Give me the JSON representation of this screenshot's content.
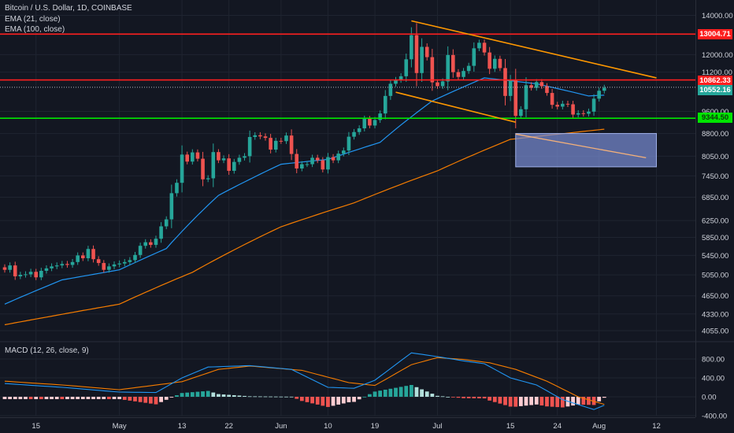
{
  "header": {
    "symbol_line": "Bitcoin / U.S. Dollar, 1D, COINBASE",
    "ema21_label": "EMA (21, close)",
    "ema100_label": "EMA (100, close)",
    "macd_label": "MACD (12, 26, close, 9)"
  },
  "colors": {
    "background": "#131722",
    "grid": "#1f2430",
    "candle_up": "#26a69a",
    "candle_down": "#ef5350",
    "ema21": "#2196f3",
    "ema100": "#f57c00",
    "resistance": "#ff1f1f",
    "support": "#00e500",
    "trendline": "#ff9800",
    "zone": "#7b8fd6",
    "macd_line": "#2196f3",
    "signal_line": "#f57c00",
    "hist_pos_strong": "#26a69a",
    "hist_pos_weak": "#b2dfdb",
    "hist_neg_strong": "#ef5350",
    "hist_neg_weak": "#ffcdd2"
  },
  "chart_data": {
    "type": "candlestick",
    "price_axis": {
      "scale": "log",
      "ylim": [
        3700,
        14500
      ],
      "ticks": [
        14000.0,
        12000.0,
        11200.0,
        9600.0,
        8800.0,
        8050.0,
        7450.0,
        6850.0,
        6250.0,
        5850.0,
        5450.0,
        5050.0,
        4650.0,
        4330.0,
        4055.0
      ]
    },
    "time_axis": {
      "range": [
        "2019-04-09",
        "2019-08-15"
      ],
      "tick_labels": [
        {
          "date": "2019-04-15",
          "label": "15"
        },
        {
          "date": "2019-05-01",
          "label": "May"
        },
        {
          "date": "2019-05-13",
          "label": "13"
        },
        {
          "date": "2019-05-22",
          "label": "22"
        },
        {
          "date": "2019-06-01",
          "label": "Jun"
        },
        {
          "date": "2019-06-10",
          "label": "10"
        },
        {
          "date": "2019-06-19",
          "label": "19"
        },
        {
          "date": "2019-07-01",
          "label": "Jul"
        },
        {
          "date": "2019-07-15",
          "label": "15"
        },
        {
          "date": "2019-07-24",
          "label": "24"
        },
        {
          "date": "2019-08-01",
          "label": "Aug"
        },
        {
          "date": "2019-08-12",
          "label": "12"
        }
      ]
    },
    "grid": true,
    "closes": [
      [
        "2019-04-09",
        5150
      ],
      [
        "2019-04-10",
        5240
      ],
      [
        "2019-04-11",
        5020
      ],
      [
        "2019-04-12",
        5050
      ],
      [
        "2019-04-13",
        5060
      ],
      [
        "2019-04-14",
        5110
      ],
      [
        "2019-04-15",
        5000
      ],
      [
        "2019-04-16",
        5130
      ],
      [
        "2019-04-17",
        5180
      ],
      [
        "2019-04-18",
        5220
      ],
      [
        "2019-04-19",
        5240
      ],
      [
        "2019-04-20",
        5270
      ],
      [
        "2019-04-21",
        5250
      ],
      [
        "2019-04-22",
        5310
      ],
      [
        "2019-04-23",
        5450
      ],
      [
        "2019-04-24",
        5390
      ],
      [
        "2019-04-25",
        5590
      ],
      [
        "2019-04-26",
        5370
      ],
      [
        "2019-04-27",
        5290
      ],
      [
        "2019-04-28",
        5150
      ],
      [
        "2019-04-29",
        5220
      ],
      [
        "2019-04-30",
        5260
      ],
      [
        "2019-05-01",
        5280
      ],
      [
        "2019-05-02",
        5310
      ],
      [
        "2019-05-03",
        5350
      ],
      [
        "2019-05-04",
        5460
      ],
      [
        "2019-05-05",
        5660
      ],
      [
        "2019-05-06",
        5740
      ],
      [
        "2019-05-07",
        5680
      ],
      [
        "2019-05-08",
        5820
      ],
      [
        "2019-05-09",
        6110
      ],
      [
        "2019-05-10",
        6280
      ],
      [
        "2019-05-11",
        6960
      ],
      [
        "2019-05-12",
        7250
      ],
      [
        "2019-05-13",
        8100
      ],
      [
        "2019-05-14",
        7880
      ],
      [
        "2019-05-15",
        8170
      ],
      [
        "2019-05-16",
        7970
      ],
      [
        "2019-05-17",
        7350
      ],
      [
        "2019-05-18",
        7380
      ],
      [
        "2019-05-19",
        8180
      ],
      [
        "2019-05-20",
        7920
      ],
      [
        "2019-05-21",
        7980
      ],
      [
        "2019-05-22",
        7600
      ],
      [
        "2019-05-23",
        7870
      ],
      [
        "2019-05-24",
        8000
      ],
      [
        "2019-05-25",
        8050
      ],
      [
        "2019-05-26",
        8680
      ],
      [
        "2019-05-27",
        8740
      ],
      [
        "2019-05-28",
        8700
      ],
      [
        "2019-05-29",
        8650
      ],
      [
        "2019-05-30",
        8260
      ],
      [
        "2019-05-31",
        8550
      ],
      [
        "2019-06-01",
        8540
      ],
      [
        "2019-06-02",
        8730
      ],
      [
        "2019-06-03",
        8120
      ],
      [
        "2019-06-04",
        7670
      ],
      [
        "2019-06-05",
        7800
      ],
      [
        "2019-06-06",
        7800
      ],
      [
        "2019-06-07",
        8000
      ],
      [
        "2019-06-08",
        7920
      ],
      [
        "2019-06-09",
        7640
      ],
      [
        "2019-06-10",
        8020
      ],
      [
        "2019-06-11",
        7920
      ],
      [
        "2019-06-12",
        8130
      ],
      [
        "2019-06-13",
        8230
      ],
      [
        "2019-06-14",
        8690
      ],
      [
        "2019-06-15",
        8850
      ],
      [
        "2019-06-16",
        8980
      ],
      [
        "2019-06-17",
        9320
      ],
      [
        "2019-06-18",
        9080
      ],
      [
        "2019-06-19",
        9280
      ],
      [
        "2019-06-20",
        9520
      ],
      [
        "2019-06-21",
        10200
      ],
      [
        "2019-06-22",
        10700
      ],
      [
        "2019-06-23",
        10860
      ],
      [
        "2019-06-24",
        11020
      ],
      [
        "2019-06-25",
        11780
      ],
      [
        "2019-06-26",
        12950
      ],
      [
        "2019-06-27",
        11160
      ],
      [
        "2019-06-28",
        12370
      ],
      [
        "2019-06-29",
        11880
      ],
      [
        "2019-06-30",
        10760
      ],
      [
        "2019-07-01",
        10600
      ],
      [
        "2019-07-02",
        10800
      ],
      [
        "2019-07-03",
        11980
      ],
      [
        "2019-07-04",
        11200
      ],
      [
        "2019-07-05",
        10990
      ],
      [
        "2019-07-06",
        11250
      ],
      [
        "2019-07-07",
        11480
      ],
      [
        "2019-07-08",
        12300
      ],
      [
        "2019-07-09",
        12570
      ],
      [
        "2019-07-10",
        12100
      ],
      [
        "2019-07-11",
        11350
      ],
      [
        "2019-07-12",
        11800
      ],
      [
        "2019-07-13",
        11380
      ],
      [
        "2019-07-14",
        10200
      ],
      [
        "2019-07-15",
        10850
      ],
      [
        "2019-07-16",
        9430
      ],
      [
        "2019-07-17",
        9680
      ],
      [
        "2019-07-18",
        10640
      ],
      [
        "2019-07-19",
        10530
      ],
      [
        "2019-07-20",
        10770
      ],
      [
        "2019-07-21",
        10600
      ],
      [
        "2019-07-22",
        10320
      ],
      [
        "2019-07-23",
        9850
      ],
      [
        "2019-07-24",
        9780
      ],
      [
        "2019-07-25",
        9890
      ],
      [
        "2019-07-26",
        9870
      ],
      [
        "2019-07-27",
        9480
      ],
      [
        "2019-07-28",
        9530
      ],
      [
        "2019-07-29",
        9510
      ],
      [
        "2019-07-30",
        9590
      ],
      [
        "2019-07-31",
        10090
      ],
      [
        "2019-08-01",
        10410
      ],
      [
        "2019-08-02",
        10530
      ]
    ],
    "ema21": [
      [
        "2019-04-09",
        4500
      ],
      [
        "2019-04-20",
        4950
      ],
      [
        "2019-05-01",
        5150
      ],
      [
        "2019-05-10",
        5600
      ],
      [
        "2019-05-20",
        6900
      ],
      [
        "2019-06-01",
        7800
      ],
      [
        "2019-06-10",
        7950
      ],
      [
        "2019-06-20",
        8500
      ],
      [
        "2019-06-30",
        10000
      ],
      [
        "2019-07-10",
        10950
      ],
      [
        "2019-07-20",
        10700
      ],
      [
        "2019-07-30",
        10200
      ],
      [
        "2019-08-02",
        10230
      ]
    ],
    "ema100": [
      [
        "2019-04-09",
        4150
      ],
      [
        "2019-05-01",
        4500
      ],
      [
        "2019-05-15",
        5100
      ],
      [
        "2019-06-01",
        6100
      ],
      [
        "2019-06-15",
        6700
      ],
      [
        "2019-07-01",
        7600
      ],
      [
        "2019-07-15",
        8600
      ],
      [
        "2019-08-02",
        8950
      ]
    ],
    "annotations": {
      "resistance_levels": [
        13004.71,
        10862.33
      ],
      "support_level": 9344.5,
      "last_price": 10552.16,
      "price_labels": [
        "13004.71",
        "10862.33",
        "10552.16",
        "9344.50"
      ],
      "upper_trendline": [
        [
          "2019-06-26",
          13700
        ],
        [
          "2019-08-12",
          10950
        ]
      ],
      "lower_trendline": [
        [
          "2019-06-23",
          10350
        ],
        [
          "2019-07-16",
          9200
        ]
      ],
      "zone": {
        "from": "2019-07-16",
        "to": "2019-08-12",
        "price_top": 8800,
        "price_bottom": 7720
      },
      "projection_line": [
        [
          "2019-07-16",
          8780
        ],
        [
          "2019-08-10",
          8000
        ]
      ]
    },
    "macd": {
      "label": "MACD (12, 26, close, 9)",
      "ylim": [
        -480,
        1140
      ],
      "ticks": [
        800.0,
        400.0,
        0.0,
        -400.0
      ],
      "macd_line": [
        [
          "2019-04-09",
          280
        ],
        [
          "2019-04-20",
          200
        ],
        [
          "2019-05-01",
          100
        ],
        [
          "2019-05-08",
          90
        ],
        [
          "2019-05-13",
          400
        ],
        [
          "2019-05-18",
          630
        ],
        [
          "2019-05-26",
          660
        ],
        [
          "2019-06-03",
          580
        ],
        [
          "2019-06-10",
          200
        ],
        [
          "2019-06-15",
          180
        ],
        [
          "2019-06-19",
          350
        ],
        [
          "2019-06-26",
          930
        ],
        [
          "2019-07-01",
          850
        ],
        [
          "2019-07-06",
          760
        ],
        [
          "2019-07-10",
          700
        ],
        [
          "2019-07-15",
          400
        ],
        [
          "2019-07-20",
          250
        ],
        [
          "2019-07-25",
          -60
        ],
        [
          "2019-07-31",
          -270
        ],
        [
          "2019-08-02",
          -180
        ]
      ],
      "signal_line": [
        [
          "2019-04-09",
          330
        ],
        [
          "2019-04-20",
          250
        ],
        [
          "2019-05-01",
          150
        ],
        [
          "2019-05-13",
          320
        ],
        [
          "2019-05-20",
          580
        ],
        [
          "2019-05-26",
          650
        ],
        [
          "2019-06-05",
          560
        ],
        [
          "2019-06-14",
          300
        ],
        [
          "2019-06-19",
          240
        ],
        [
          "2019-06-26",
          680
        ],
        [
          "2019-07-01",
          830
        ],
        [
          "2019-07-06",
          790
        ],
        [
          "2019-07-11",
          720
        ],
        [
          "2019-07-16",
          580
        ],
        [
          "2019-07-22",
          330
        ],
        [
          "2019-07-28",
          0
        ],
        [
          "2019-08-02",
          -160
        ]
      ]
    }
  }
}
